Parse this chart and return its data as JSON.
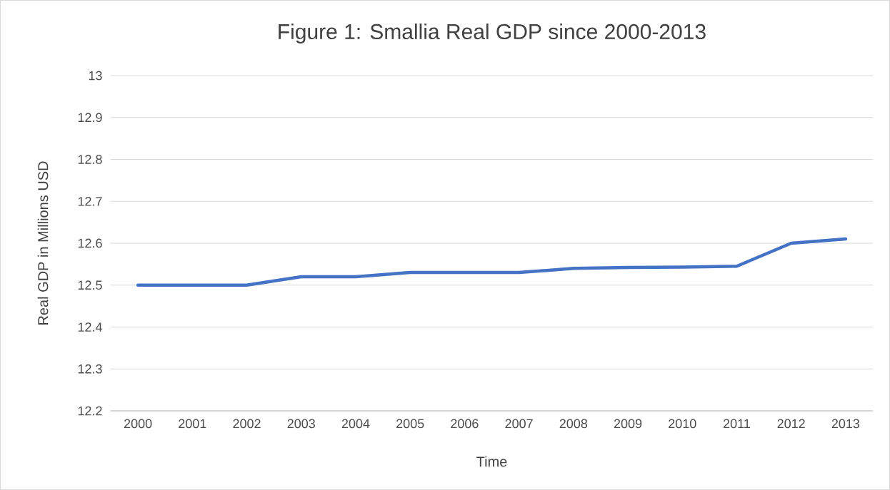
{
  "chart_data": {
    "type": "line",
    "title": "Figure 1: Smallia Real GDP since 2000-2013",
    "xlabel": "Time",
    "ylabel": "Real GDP in Millions USD",
    "categories": [
      "2000",
      "2001",
      "2002",
      "2003",
      "2004",
      "2005",
      "2006",
      "2007",
      "2008",
      "2009",
      "2010",
      "2011",
      "2012",
      "2013"
    ],
    "series": [
      {
        "color": "#4472c4",
        "values": [
          12.5,
          12.5,
          12.5,
          12.52,
          12.52,
          12.53,
          12.53,
          12.53,
          12.54,
          12.542,
          12.543,
          12.545,
          12.6,
          12.61
        ]
      }
    ],
    "ylim": [
      12.2,
      13
    ],
    "yticks": [
      12.2,
      12.3,
      12.4,
      12.5,
      12.6,
      12.7,
      12.8,
      12.9,
      13
    ],
    "grid": "y",
    "marker": "none",
    "line_style": "solid"
  }
}
